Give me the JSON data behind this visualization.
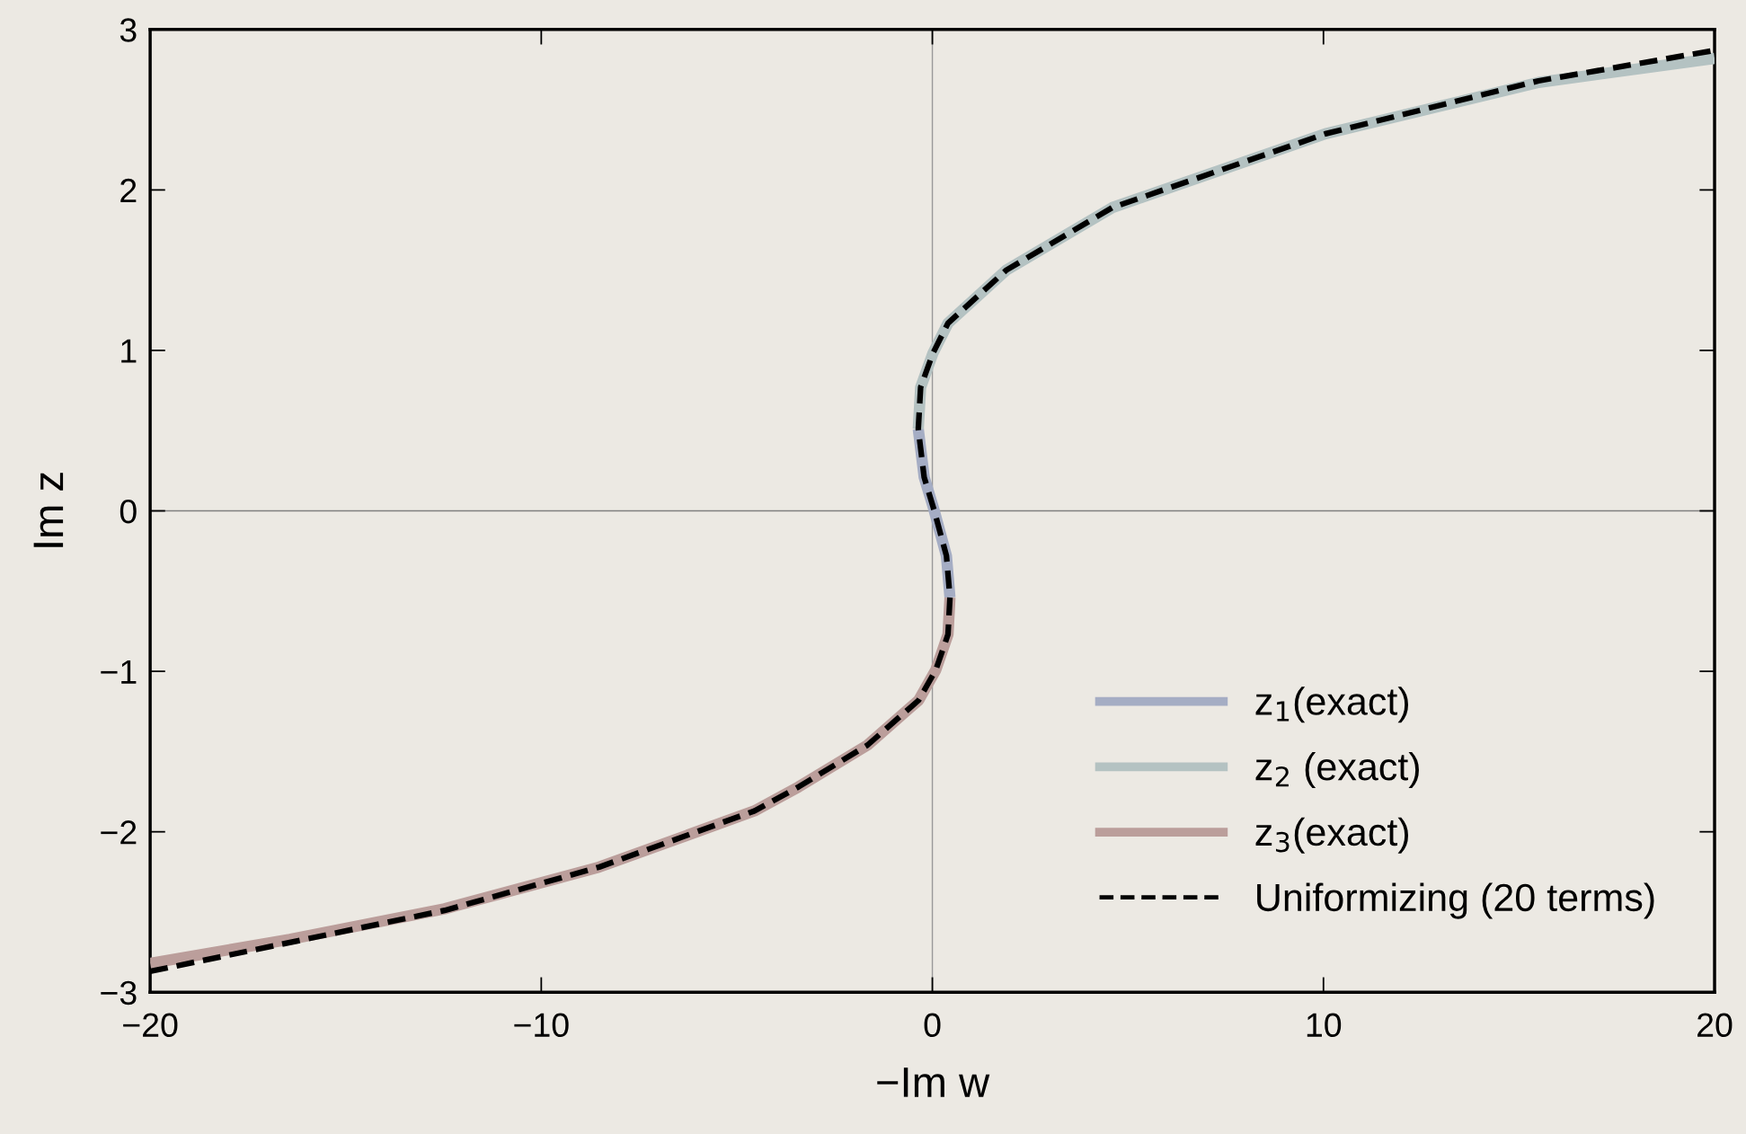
{
  "chart_data": {
    "type": "line",
    "xlabel": "−Im w",
    "ylabel": "Im z",
    "xlim": [
      -20,
      20
    ],
    "ylim": [
      -3,
      3
    ],
    "xticks": [
      -20,
      -10,
      0,
      10,
      20
    ],
    "yticks": [
      -3,
      -2,
      -1,
      0,
      1,
      2,
      3
    ],
    "grid": false,
    "legend": "bottom right",
    "ref_lines": [
      {
        "axis": "x",
        "value": 0,
        "color": "#999999"
      },
      {
        "axis": "y",
        "value": 0,
        "color": "#7f7f7f"
      }
    ],
    "series": [
      {
        "name": "z$_{1}$(exact)",
        "color": "#a5adc4",
        "line_style": "solid",
        "x": [
          0.45,
          0.36,
          0.05,
          -0.21,
          -0.36
        ],
        "values": [
          -0.54,
          -0.28,
          0,
          0.21,
          0.51
        ]
      },
      {
        "name": "z$_{2}$ (exact)",
        "color": "#b4c2c2",
        "line_style": "solid",
        "x": [
          -0.36,
          -0.3,
          0.01,
          0.4,
          1.89,
          4.6,
          10.05,
          15.5,
          20
        ],
        "values": [
          0.51,
          0.77,
          0.98,
          1.17,
          1.5,
          1.89,
          2.35,
          2.67,
          2.82
        ]
      },
      {
        "name": "z$_{3}$(exact)",
        "color": "#bb9e9b",
        "line_style": "solid",
        "x": [
          -20,
          -16.43,
          -12.47,
          -8.52,
          -4.55,
          -3.42,
          -1.66,
          -0.35,
          0.09,
          0.4,
          0.45
        ],
        "values": [
          -2.82,
          -2.67,
          -2.48,
          -2.22,
          -1.87,
          -1.72,
          -1.46,
          -1.18,
          -0.99,
          -0.77,
          -0.54
        ]
      },
      {
        "name": "Uniformizing (20 terms)",
        "color": "#000000",
        "line_style": "dashed",
        "x": [
          -20,
          -16.43,
          -12.47,
          -8.52,
          -4.55,
          -3.42,
          -1.66,
          -0.35,
          0.09,
          0.4,
          0.45,
          0.36,
          0.05,
          -0.21,
          -0.36,
          -0.3,
          0.01,
          0.4,
          1.89,
          4.6,
          10.05,
          15.5,
          20
        ],
        "values": [
          -2.87,
          -2.69,
          -2.49,
          -2.22,
          -1.87,
          -1.72,
          -1.46,
          -1.18,
          -0.99,
          -0.77,
          -0.54,
          -0.28,
          0,
          0.21,
          0.51,
          0.77,
          0.98,
          1.17,
          1.5,
          1.89,
          2.35,
          2.68,
          2.87
        ]
      }
    ]
  }
}
